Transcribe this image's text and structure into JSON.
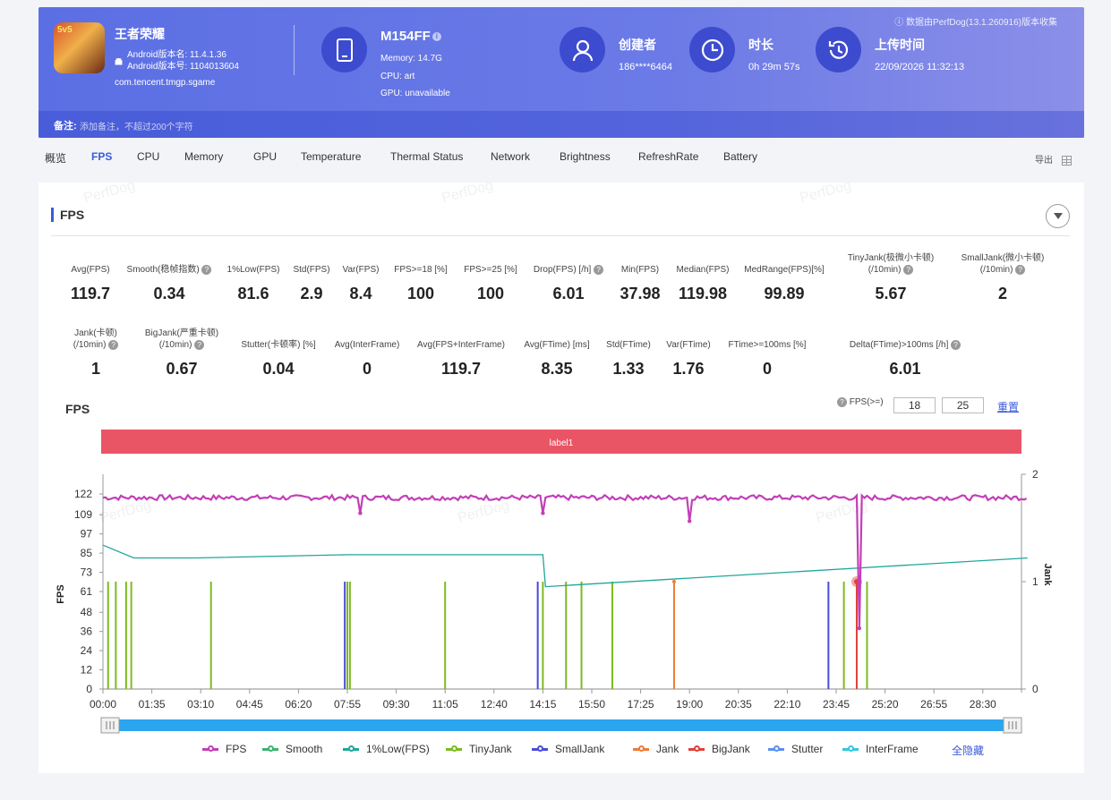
{
  "header": {
    "source_note": "数据由PerfDog(13.1.260916)版本收集",
    "app": {
      "icon_text": "5v5",
      "name": "王者荣耀",
      "version_name": "Android版本名: 11.4.1.36",
      "version_code": "Android版本号: 1104013604",
      "package": "com.tencent.tmgp.sgame"
    },
    "device": {
      "name": "M154FF",
      "memory": "Memory: 14.7G",
      "cpu": "CPU: art",
      "gpu": "GPU: unavailable"
    },
    "creator": {
      "title": "创建者",
      "value": "186****6464"
    },
    "duration": {
      "title": "时长",
      "value": "0h 29m 57s"
    },
    "upload": {
      "title": "上传时间",
      "value": "22/09/2026 11:32:13"
    },
    "note": {
      "label": "备注:",
      "placeholder": "添加备注，不超过200个字符"
    }
  },
  "tabs": [
    "概览",
    "FPS",
    "CPU",
    "Memory",
    "GPU",
    "Temperature",
    "Thermal Status",
    "Network",
    "Brightness",
    "RefreshRate",
    "Battery"
  ],
  "active_tab": "FPS",
  "export_label": "导出",
  "section_title": "FPS",
  "watermark": "PerfDog",
  "metrics_row1": [
    {
      "label": "Avg(FPS)",
      "value": "119.7"
    },
    {
      "label": "Smooth(稳帧指数)",
      "value": "0.34",
      "help": true
    },
    {
      "label": "1%Low(FPS)",
      "value": "81.6"
    },
    {
      "label": "Std(FPS)",
      "value": "2.9"
    },
    {
      "label": "Var(FPS)",
      "value": "8.4"
    },
    {
      "label": "FPS>=18 [%]",
      "value": "100"
    },
    {
      "label": "FPS>=25 [%]",
      "value": "100"
    },
    {
      "label": "Drop(FPS) [/h]",
      "value": "6.01",
      "help": true
    },
    {
      "label": "Min(FPS)",
      "value": "37.98"
    },
    {
      "label": "Median(FPS)",
      "value": "119.98"
    },
    {
      "label": "MedRange(FPS)[%]",
      "value": "99.89"
    },
    {
      "label": "TinyJank(极微小卡顿)",
      "label2": "(/10min)",
      "value": "5.67",
      "help": true
    },
    {
      "label": "SmallJank(微小卡顿)",
      "label2": "(/10min)",
      "value": "2",
      "help": true
    }
  ],
  "metrics_row2": [
    {
      "label": "Jank(卡顿)",
      "label2": "(/10min)",
      "value": "1",
      "help": true
    },
    {
      "label": "BigJank(严重卡顿)",
      "label2": "(/10min)",
      "value": "0.67",
      "help": true
    },
    {
      "label": "Stutter(卡顿率) [%]",
      "value": "0.04"
    },
    {
      "label": "Avg(InterFrame)",
      "value": "0"
    },
    {
      "label": "Avg(FPS+InterFrame)",
      "value": "119.7"
    },
    {
      "label": "Avg(FTime) [ms]",
      "value": "8.35"
    },
    {
      "label": "Std(FTime)",
      "value": "1.33"
    },
    {
      "label": "Var(FTime)",
      "value": "1.76"
    },
    {
      "label": "FTime>=100ms [%]",
      "value": "0"
    },
    {
      "label": "Delta(FTime)>100ms [/h]",
      "value": "6.01",
      "help": true
    }
  ],
  "chart_controls": {
    "title": "FPS",
    "threshold_label": "FPS(>=)",
    "threshold_1": "18",
    "threshold_2": "25",
    "reset_label": "重置"
  },
  "chart_data": {
    "type": "line",
    "label_band": "label1",
    "ylabel": "FPS",
    "y2label": "Jank",
    "y_ticks": [
      "122",
      "109",
      "97",
      "85",
      "73",
      "61",
      "48",
      "36",
      "24",
      "12",
      "0"
    ],
    "y2_ticks": [
      "2",
      "1",
      "0"
    ],
    "x_ticks": [
      "00:00",
      "01:35",
      "03:10",
      "04:45",
      "06:20",
      "07:55",
      "09:30",
      "11:05",
      "12:40",
      "14:15",
      "15:50",
      "17:25",
      "19:00",
      "20:35",
      "22:10",
      "23:45",
      "25:20",
      "26:55",
      "28:30"
    ],
    "ylim": [
      0,
      122
    ],
    "y2lim": [
      0,
      2
    ],
    "fps_avg": 119.7,
    "fps_dips": [
      {
        "t": "08:20",
        "v": 110
      },
      {
        "t": "14:15",
        "v": 110
      },
      {
        "t": "19:00",
        "v": 105
      },
      {
        "t": "24:30",
        "v": 38
      }
    ],
    "low1_series": [
      {
        "t": "00:00",
        "v": 90
      },
      {
        "t": "01:00",
        "v": 82
      },
      {
        "t": "03:00",
        "v": 82
      },
      {
        "t": "07:55",
        "v": 84
      },
      {
        "t": "14:15",
        "v": 84
      },
      {
        "t": "14:20",
        "v": 64
      },
      {
        "t": "29:57",
        "v": 82
      }
    ],
    "tiny_jank_times": [
      "00:10",
      "00:25",
      "00:45",
      "00:55",
      "03:30",
      "07:55",
      "08:00",
      "11:05",
      "14:15",
      "15:00",
      "15:30",
      "16:30",
      "24:00",
      "24:45"
    ],
    "small_jank_times": [
      "07:50",
      "14:05",
      "23:30"
    ],
    "jank_times": [
      "18:30"
    ],
    "big_jank_times": [
      "24:25"
    ],
    "legend": [
      {
        "name": "FPS",
        "color": "#c23fb8"
      },
      {
        "name": "Smooth",
        "color": "#3cb371"
      },
      {
        "name": "1%Low(FPS)",
        "color": "#1fa79a"
      },
      {
        "name": "TinyJank",
        "color": "#7cbb1f"
      },
      {
        "name": "SmallJank",
        "color": "#4b4bd8"
      },
      {
        "name": "Jank",
        "color": "#f07a35"
      },
      {
        "name": "BigJank",
        "color": "#e0403a"
      },
      {
        "name": "Stutter",
        "color": "#5a8ff0"
      },
      {
        "name": "InterFrame",
        "color": "#33c7e0"
      }
    ],
    "hide_all_label": "全隐藏"
  }
}
